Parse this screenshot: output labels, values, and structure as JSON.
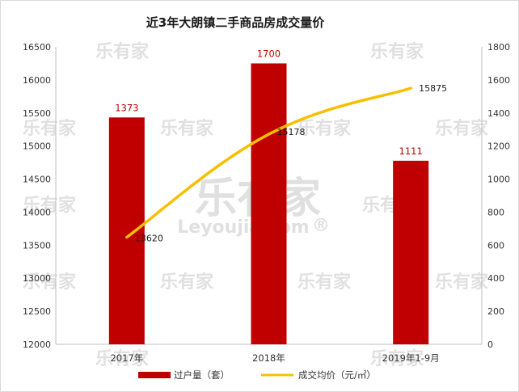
{
  "watermark": {
    "brand": "乐有家",
    "site": "Leyoujia.com",
    "reg": "®"
  },
  "chart_data": {
    "type": "bar",
    "title": "近3年大朗镇二手商品房成交量价",
    "categories": [
      "2017年",
      "2018年",
      "2019年1-9月"
    ],
    "series": [
      {
        "name": "过户量（套）",
        "type": "bar",
        "axis": "right",
        "color": "#c00000",
        "values": [
          1373,
          1700,
          1111
        ]
      },
      {
        "name": "成交均价（元/㎡）",
        "type": "line",
        "axis": "left",
        "color": "#f5c000",
        "values": [
          13620,
          15178,
          15875
        ]
      }
    ],
    "y_left": {
      "min": 12000,
      "max": 16500,
      "ticks": [
        "12000",
        "12500",
        "13000",
        "13500",
        "14000",
        "14500",
        "15000",
        "15500",
        "16000",
        "16500"
      ]
    },
    "y_right": {
      "min": 0,
      "max": 1800,
      "ticks": [
        "0",
        "200",
        "400",
        "600",
        "800",
        "1000",
        "1200",
        "1400",
        "1600",
        "1800"
      ]
    },
    "legend": "bottom",
    "grid": false
  }
}
